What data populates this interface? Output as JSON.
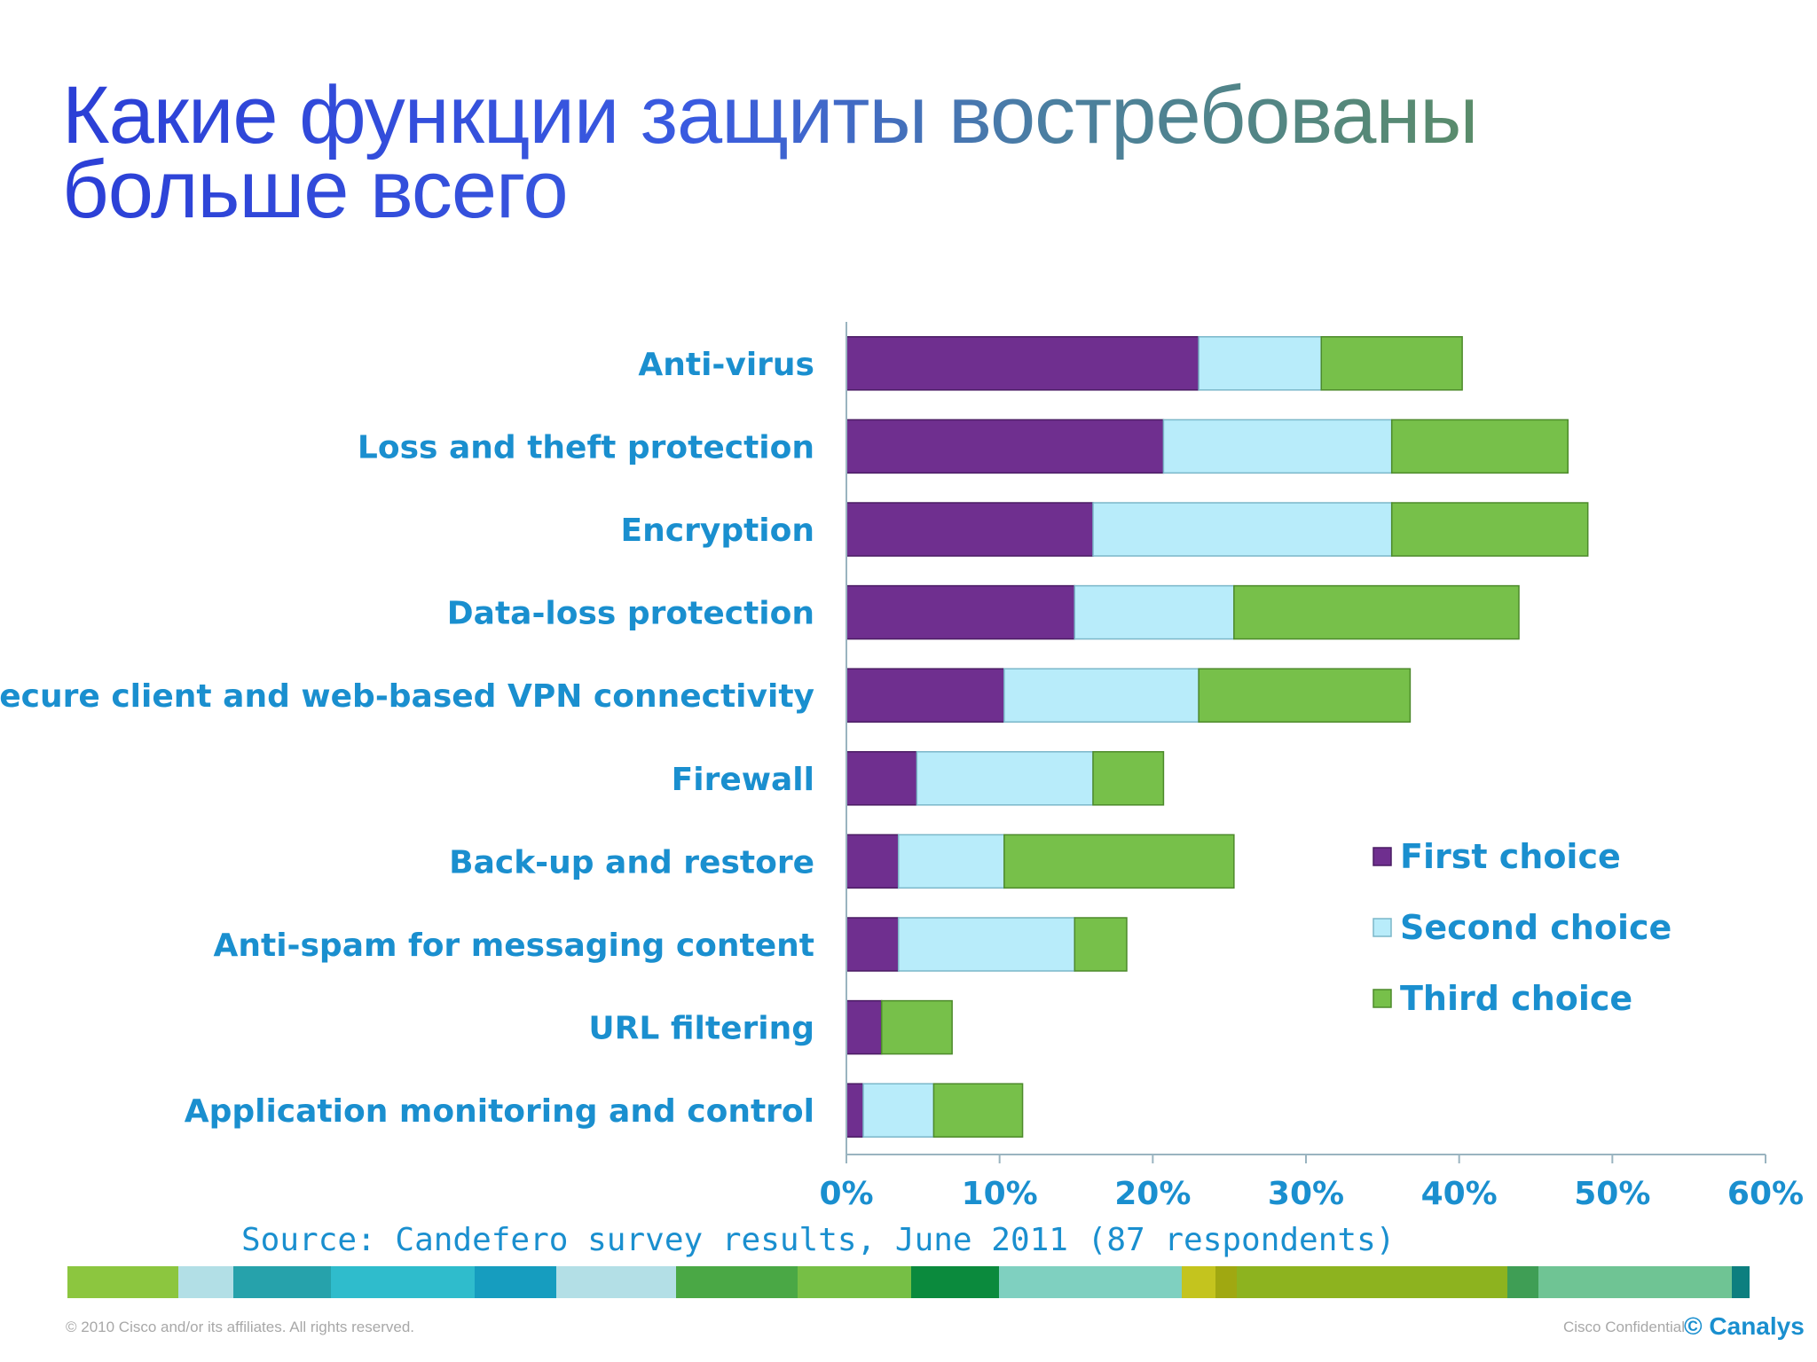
{
  "slide": {
    "title_line1": "Какие функции защиты востребованы",
    "title_line2": "больше всего",
    "source": "Source: Candefero survey results, June 2011 (87 respondents)",
    "copyright": "© 2010 Cisco and/or its affiliates. All rights reserved.",
    "confidential": "Cisco Confidential",
    "brand": "© Canalys"
  },
  "colors": {
    "label": "#1a8fcf",
    "first": "#6f2f8f",
    "second": "#b8ecfa",
    "third": "#77c04a",
    "axis": "#9ab4c0"
  },
  "color_strip": [
    {
      "color": "#8cc63f",
      "w": 125
    },
    {
      "color": "#b2dfe6",
      "w": 62
    },
    {
      "color": "#26a2ab",
      "w": 110
    },
    {
      "color": "#2fbccc",
      "w": 162
    },
    {
      "color": "#169dbf",
      "w": 92
    },
    {
      "color": "#b3dfe6",
      "w": 135
    },
    {
      "color": "#4aa845",
      "w": 137
    },
    {
      "color": "#76bf45",
      "w": 128
    },
    {
      "color": "#0b8a3d",
      "w": 99
    },
    {
      "color": "#7fd0c0",
      "w": 206
    },
    {
      "color": "#c4c41e",
      "w": 38
    },
    {
      "color": "#a0a811",
      "w": 24
    },
    {
      "color": "#8db31f",
      "w": 305
    },
    {
      "color": "#3f9e55",
      "w": 35
    },
    {
      "color": "#6fc494",
      "w": 218
    },
    {
      "color": "#0d7f7f",
      "w": 20
    }
  ],
  "chart_data": {
    "type": "bar",
    "orientation": "horizontal",
    "stacked": true,
    "categories": [
      "Anti-virus",
      "Loss and theft protection",
      "Encryption",
      "Data-loss protection",
      "Secure client and web-based VPN connectivity",
      "Firewall",
      "Back-up and restore",
      "Anti-spam for messaging content",
      "URL filtering",
      "Application monitoring and control"
    ],
    "series": [
      {
        "name": "First choice",
        "values": [
          23.0,
          20.7,
          16.1,
          14.9,
          10.3,
          4.6,
          3.4,
          3.4,
          2.3,
          1.1
        ]
      },
      {
        "name": "Second choice",
        "values": [
          8.0,
          14.9,
          19.5,
          10.4,
          12.7,
          11.5,
          6.9,
          11.5,
          0.0,
          4.6
        ]
      },
      {
        "name": "Third choice",
        "values": [
          9.2,
          11.5,
          12.8,
          18.6,
          13.8,
          4.6,
          15.0,
          3.4,
          4.6,
          5.8
        ]
      }
    ],
    "xlim": [
      0,
      60
    ],
    "x_ticks": [
      "0%",
      "10%",
      "20%",
      "30%",
      "40%",
      "50%",
      "60%"
    ],
    "legend": "right"
  }
}
